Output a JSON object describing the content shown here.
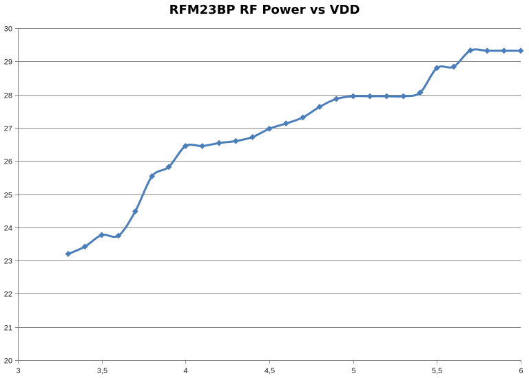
{
  "chart_data": {
    "type": "line",
    "title": "RFM23BP RF Power vs VDD",
    "xlabel": "",
    "ylabel": "",
    "xlim": [
      3,
      6
    ],
    "ylim": [
      20,
      30
    ],
    "x_ticks": [
      "3",
      "3,5",
      "4",
      "4,5",
      "5",
      "5,5",
      "6"
    ],
    "x_tick_values": [
      3,
      3.5,
      4,
      4.5,
      5,
      5.5,
      6
    ],
    "y_ticks": [
      "20",
      "21",
      "22",
      "23",
      "24",
      "25",
      "26",
      "27",
      "28",
      "29",
      "30"
    ],
    "y_tick_values": [
      20,
      21,
      22,
      23,
      24,
      25,
      26,
      27,
      28,
      29,
      30
    ],
    "grid": "horizontal",
    "legend": "none",
    "series": [
      {
        "color": "#4a7ebb",
        "x": [
          3.3,
          3.4,
          3.5,
          3.6,
          3.7,
          3.8,
          3.9,
          4.0,
          4.1,
          4.2,
          4.3,
          4.4,
          4.5,
          4.6,
          4.7,
          4.8,
          4.9,
          5.0,
          5.1,
          5.2,
          5.3,
          5.4,
          5.5,
          5.6,
          5.7,
          5.8,
          5.9,
          6.0
        ],
        "y": [
          23.2,
          23.42,
          23.77,
          23.75,
          24.48,
          25.54,
          25.82,
          26.45,
          26.45,
          26.54,
          26.6,
          26.72,
          26.97,
          27.13,
          27.31,
          27.63,
          27.87,
          27.95,
          27.95,
          27.95,
          27.95,
          28.06,
          28.8,
          28.84,
          29.33,
          29.32,
          29.32,
          29.32
        ]
      }
    ]
  }
}
